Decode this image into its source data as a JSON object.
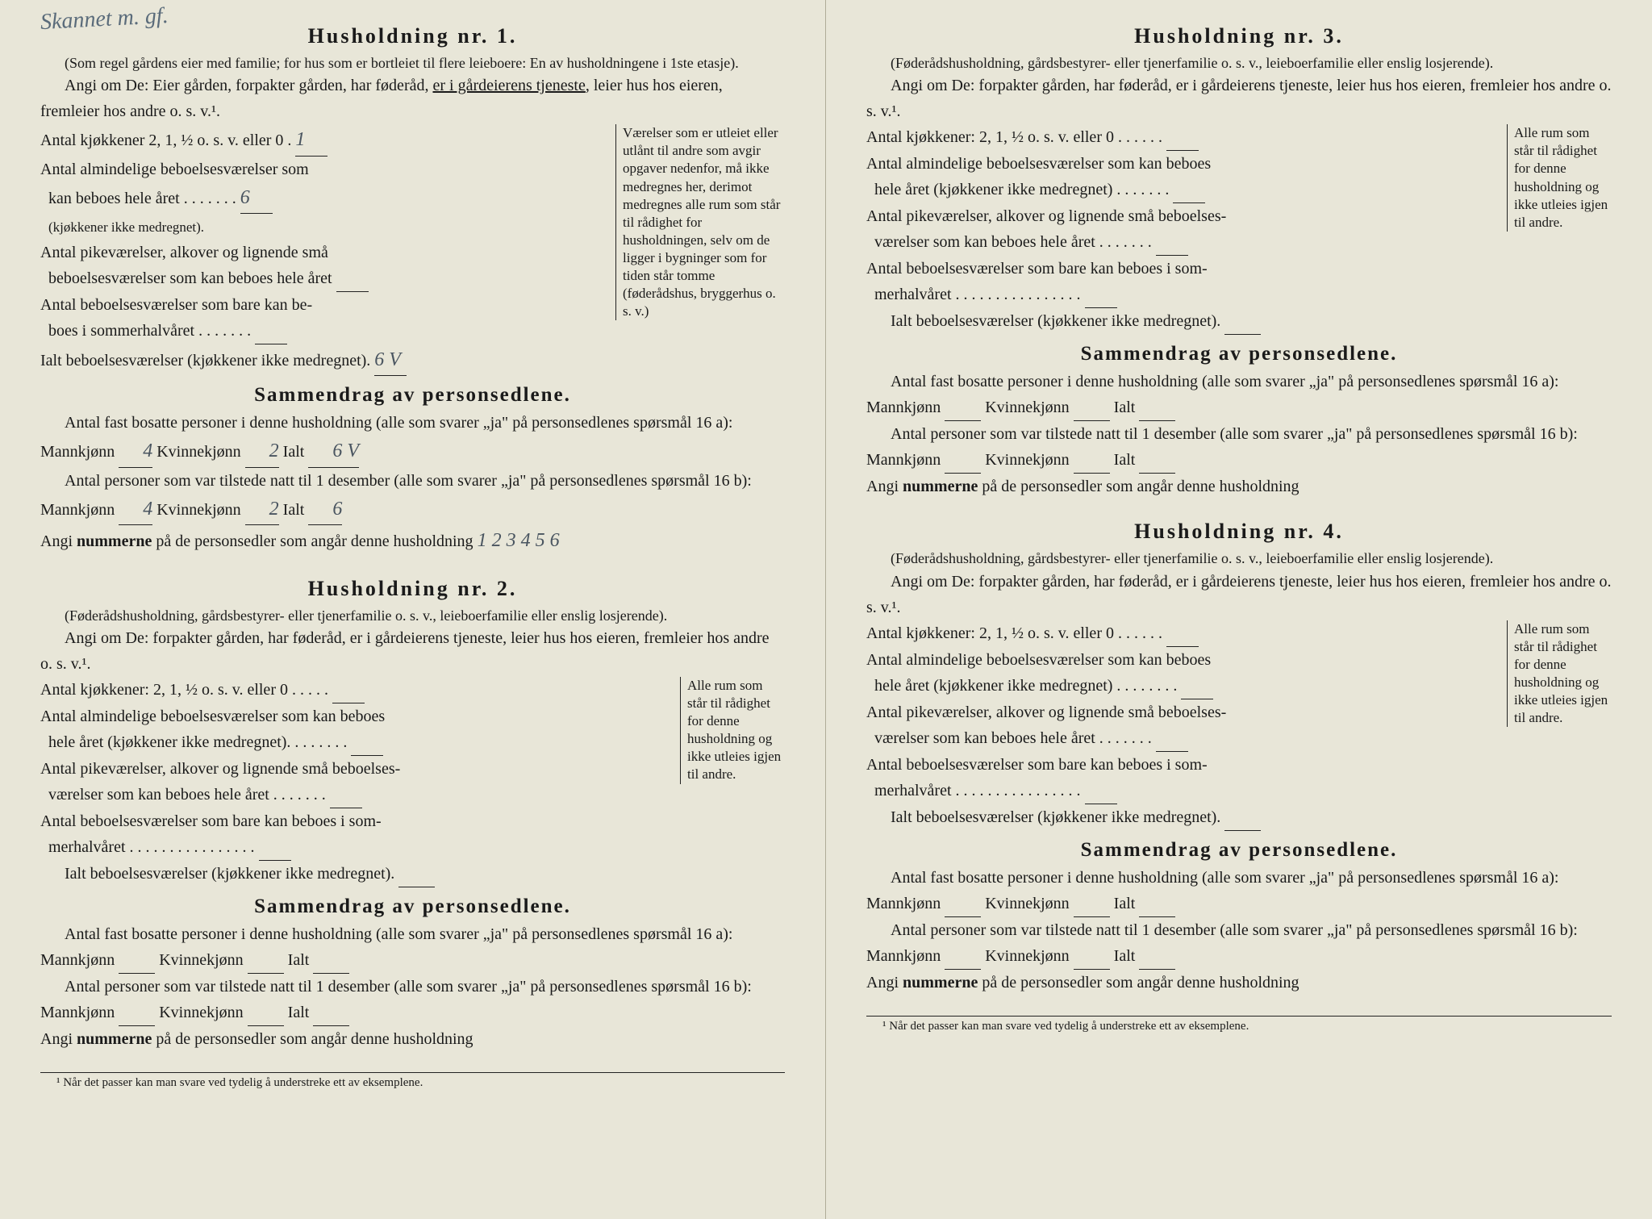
{
  "handwriting_top": "Skannet m. gf.",
  "left": {
    "h1": {
      "title": "Husholdning nr. 1.",
      "sub": "(Som regel gårdens eier med familie; for hus som er bortleiet til flere leieboere: En av husholdningene i 1ste etasje).",
      "angi_pre": "Angi om De: Eier gården, forpakter gården, har føderåd, ",
      "angi_u": "er i gårdeierens tjeneste",
      "angi_post": ", leier hus hos eieren, fremleier hos andre o. s. v.¹.",
      "kitchens": "Antal kjøkkener 2, 1, ½ o. s. v. eller 0 .",
      "kitchens_val": "1",
      "rooms1a": "Antal almindelige beboelsesværelser som",
      "rooms1b": "kan beboes hele året",
      "rooms1_val": "6",
      "rooms1_note": "(kjøkkener ikke medregnet).",
      "rooms2a": "Antal pikeværelser, alkover og lignende små",
      "rooms2b": "beboelsesværelser som kan beboes hele året",
      "rooms3a": "Antal beboelsesværelser som bare kan be-",
      "rooms3b": "boes i sommerhalvåret",
      "total": "Ialt beboelsesværelser (kjøkkener ikke medregnet).",
      "total_val": "6 V",
      "side_note": "Værelser som er utleiet eller utlånt til andre som avgir opgaver nedenfor, må ikke medregnes her, derimot medregnes alle rum som står til rådighet for husholdningen, selv om de ligger i bygninger som for tiden står tomme (føderådshus, bryggerhus o. s. v.)",
      "sum_title": "Sammendrag av personsedlene.",
      "sum1": "Antal fast bosatte personer i denne husholdning (alle som svarer „ja\" på personsedlenes spørsmål 16 a): Mannkjønn",
      "m1": "4",
      "sum1_k": "Kvinnekjønn",
      "k1": "2",
      "sum1_i": "Ialt",
      "i1": "6 V",
      "sum2": "Antal personer som var tilstede natt til 1 desember (alle som svarer „ja\" på personsedlenes spørsmål 16 b): Mannkjønn",
      "m2": "4",
      "k2": "2",
      "i2": "6",
      "numline": "Angi ",
      "numline_b": "nummerne",
      "numline2": " på de personsedler som angår denne husholdning",
      "numvals": "1 2 3 4 5 6"
    },
    "h2": {
      "title": "Husholdning nr. 2.",
      "sub": "(Føderådshusholdning, gårdsbestyrer- eller tjenerfamilie o. s. v., leieboerfamilie eller enslig losjerende).",
      "angi": "Angi om De: forpakter gården, har føderåd, er i gårdeierens tjeneste, leier hus hos eieren, fremleier hos andre o. s. v.¹.",
      "kitchens": "Antal kjøkkener: 2, 1, ½ o. s. v. eller 0",
      "rooms1a": "Antal almindelige beboelsesværelser som kan beboes",
      "rooms1b": "hele året (kjøkkener ikke medregnet).",
      "rooms2a": "Antal pikeværelser, alkover og lignende små beboelses-",
      "rooms2b": "værelser som kan beboes hele året",
      "rooms3a": "Antal beboelsesværelser som bare kan beboes i som-",
      "rooms3b": "merhalvåret",
      "total": "Ialt beboelsesværelser (kjøkkener ikke medregnet).",
      "side_note": "Alle rum som står til rådighet for denne husholdning og ikke utleies igjen til andre.",
      "sum_title": "Sammendrag av personsedlene.",
      "sum1": "Antal fast bosatte personer i denne husholdning (alle som svarer „ja\" på personsedlenes spørsmål 16 a): Mannkjønn",
      "sum1_k": "Kvinnekjønn",
      "sum1_i": "Ialt",
      "sum2": "Antal personer som var tilstede natt til 1 desember (alle som svarer „ja\" på personsedlenes spørsmål 16 b): Mannkjønn",
      "numline": "Angi ",
      "numline_b": "nummerne",
      "numline2": " på de personsedler som angår denne husholdning"
    },
    "footnote": "¹ Når det passer kan man svare ved tydelig å understreke ett av eksemplene."
  },
  "right": {
    "h3": {
      "title": "Husholdning nr. 3.",
      "sub": "(Føderådshusholdning, gårdsbestyrer- eller tjenerfamilie o. s. v., leieboerfamilie eller enslig losjerende).",
      "angi": "Angi om De: forpakter gården, har føderåd, er i gårdeierens tjeneste, leier hus hos eieren, fremleier hos andre o. s. v.¹.",
      "kitchens": "Antal kjøkkener: 2, 1, ½ o. s. v. eller 0",
      "rooms1a": "Antal almindelige beboelsesværelser som kan beboes",
      "rooms1b": "hele året (kjøkkener ikke medregnet)",
      "rooms2a": "Antal pikeværelser, alkover og lignende små beboelses-",
      "rooms2b": "værelser som kan beboes hele året",
      "rooms3a": "Antal beboelsesværelser som bare kan beboes i som-",
      "rooms3b": "merhalvåret",
      "total": "Ialt beboelsesværelser (kjøkkener ikke medregnet).",
      "side_note": "Alle rum som står til rådighet for denne husholdning og ikke utleies igjen til andre.",
      "sum_title": "Sammendrag av personsedlene.",
      "sum1": "Antal fast bosatte personer i denne husholdning (alle som svarer „ja\" på personsedlenes spørsmål 16 a): Mannkjønn",
      "sum1_k": "Kvinnekjønn",
      "sum1_i": "Ialt",
      "sum2": "Antal personer som var tilstede natt til 1 desember (alle som svarer „ja\" på personsedlenes spørsmål 16 b): Mannkjønn",
      "numline": "Angi ",
      "numline_b": "nummerne",
      "numline2": " på de personsedler som angår denne husholdning"
    },
    "h4": {
      "title": "Husholdning nr. 4.",
      "sub": "(Føderådshusholdning, gårdsbestyrer- eller tjenerfamilie o. s. v., leieboerfamilie eller enslig losjerende).",
      "angi": "Angi om De: forpakter gården, har føderåd, er i gårdeierens tjeneste, leier hus hos eieren, fremleier hos andre o. s. v.¹.",
      "kitchens": "Antal kjøkkener: 2, 1, ½ o. s. v. eller 0",
      "rooms1a": "Antal almindelige beboelsesværelser som kan beboes",
      "rooms1b": "hele året (kjøkkener ikke medregnet)",
      "rooms2a": "Antal pikeværelser, alkover og lignende små beboelses-",
      "rooms2b": "værelser som kan beboes hele året",
      "rooms3a": "Antal beboelsesværelser som bare kan beboes i som-",
      "rooms3b": "merhalvåret",
      "total": "Ialt beboelsesværelser (kjøkkener ikke medregnet).",
      "side_note": "Alle rum som står til rådighet for denne husholdning og ikke utleies igjen til andre.",
      "sum_title": "Sammendrag av personsedlene.",
      "sum1": "Antal fast bosatte personer i denne husholdning (alle som svarer „ja\" på personsedlenes spørsmål 16 a): Mannkjønn",
      "sum1_k": "Kvinnekjønn",
      "sum1_i": "Ialt",
      "sum2": "Antal personer som var tilstede natt til 1 desember (alle som svarer „ja\" på personsedlenes spørsmål 16 b): Mannkjønn",
      "numline": "Angi ",
      "numline_b": "nummerne",
      "numline2": " på de personsedler som angår denne husholdning"
    },
    "footnote": "¹ Når det passer kan man svare ved tydelig å understreke ett av eksemplene."
  }
}
